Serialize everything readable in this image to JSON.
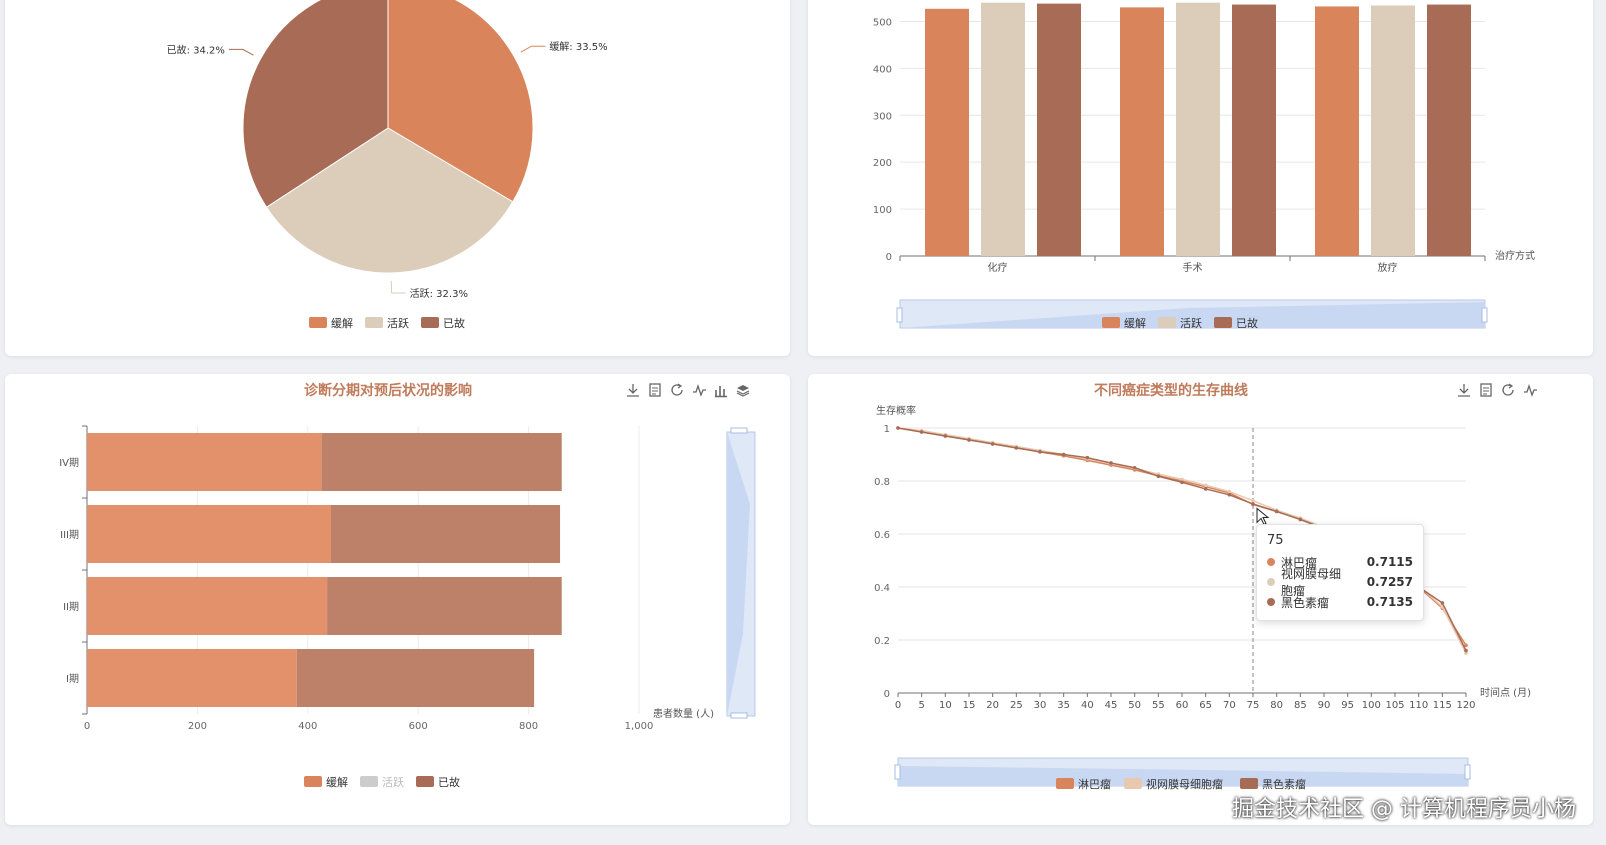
{
  "colors": {
    "remission": "#d9845a",
    "active": "#dccdbb",
    "deceased": "#a86b55",
    "stack_remission": "#e3916a",
    "stack_deceased": "#bd8068",
    "title": "#c07b5b",
    "zoom": "#c9d8f2"
  },
  "icons": {
    "toolbox_full": [
      "download-icon",
      "data-view-icon",
      "refresh-icon",
      "line-type-icon",
      "bar-type-icon",
      "stack-icon"
    ],
    "toolbox_short": [
      "download-icon",
      "data-view-icon",
      "refresh-icon",
      "line-type-icon"
    ]
  },
  "chart_data": [
    {
      "type": "pie",
      "slices": [
        {
          "name": "缓解",
          "value": 33.5,
          "label": "缓解: 33.5%"
        },
        {
          "name": "活跃",
          "value": 32.3,
          "label": "活跃: 32.3%"
        },
        {
          "name": "已故",
          "value": 34.2,
          "label": "已故: 34.2%"
        }
      ],
      "legend": [
        "缓解",
        "活跃",
        "已故"
      ],
      "legend_position": "bottom"
    },
    {
      "type": "bar",
      "categories": [
        "化疗",
        "手术",
        "放疗"
      ],
      "series": [
        {
          "name": "缓解",
          "values": [
            527,
            530,
            532
          ]
        },
        {
          "name": "活跃",
          "values": [
            540,
            540,
            534
          ]
        },
        {
          "name": "已故",
          "values": [
            538,
            536,
            536
          ]
        }
      ],
      "xlabel": "治疗方式",
      "yticks": [
        0,
        100,
        200,
        300,
        400,
        500
      ],
      "ylim": [
        0,
        550
      ],
      "legend": [
        "缓解",
        "活跃",
        "已故"
      ],
      "datazoom": true
    },
    {
      "type": "bar",
      "orientation": "horizontal",
      "stacked": true,
      "title": "诊断分期对预后状况的影响",
      "categories": [
        "IV期",
        "III期",
        "II期",
        "I期"
      ],
      "series": [
        {
          "name": "缓解",
          "values": [
            425,
            442,
            435,
            380
          ]
        },
        {
          "name": "已故",
          "values": [
            435,
            415,
            425,
            430
          ]
        }
      ],
      "xlabel": "患者数量 (人)",
      "xticks": [
        "0",
        "200",
        "400",
        "600",
        "800",
        "1,000"
      ],
      "xlim": [
        0,
        1000
      ],
      "legend": [
        "缓解",
        "活跃",
        "已故"
      ],
      "legend_inactive": [
        "活跃"
      ],
      "datazoom": true
    },
    {
      "type": "line",
      "title": "不同癌症类型的生存曲线",
      "ylabel": "生存概率",
      "xlabel": "时间点 (月)",
      "xlim": [
        0,
        120
      ],
      "ylim": [
        0,
        1
      ],
      "xticks": [
        0,
        5,
        10,
        15,
        20,
        25,
        30,
        35,
        40,
        45,
        50,
        55,
        60,
        65,
        70,
        75,
        80,
        85,
        90,
        95,
        100,
        105,
        110,
        115,
        120
      ],
      "yticks": [
        "0",
        "0.2",
        "0.4",
        "0.6",
        "0.8",
        "1"
      ],
      "x": [
        0,
        5,
        10,
        15,
        20,
        25,
        30,
        35,
        40,
        45,
        50,
        55,
        60,
        65,
        70,
        75,
        80,
        85,
        90,
        95,
        100,
        105,
        110,
        115,
        120
      ],
      "series": [
        {
          "name": "淋巴瘤",
          "values": [
            1.0,
            0.985,
            0.97,
            0.955,
            0.94,
            0.925,
            0.91,
            0.895,
            0.878,
            0.86,
            0.842,
            0.82,
            0.8,
            0.778,
            0.755,
            0.7115,
            0.685,
            0.655,
            0.62,
            0.58,
            0.53,
            0.47,
            0.4,
            0.32,
            0.18
          ]
        },
        {
          "name": "视网膜母细胞瘤",
          "values": [
            1.0,
            0.99,
            0.975,
            0.96,
            0.945,
            0.93,
            0.915,
            0.9,
            0.884,
            0.866,
            0.848,
            0.826,
            0.806,
            0.784,
            0.76,
            0.7257,
            0.69,
            0.66,
            0.625,
            0.585,
            0.535,
            0.475,
            0.405,
            0.325,
            0.15
          ]
        },
        {
          "name": "黑色素瘤",
          "values": [
            1.0,
            0.985,
            0.97,
            0.955,
            0.94,
            0.925,
            0.91,
            0.9,
            0.888,
            0.868,
            0.85,
            0.818,
            0.795,
            0.77,
            0.748,
            0.7135,
            0.685,
            0.655,
            0.62,
            0.58,
            0.53,
            0.47,
            0.4,
            0.34,
            0.16
          ]
        }
      ],
      "legend": [
        "淋巴瘤",
        "视网膜母细胞瘤",
        "黑色素瘤"
      ],
      "hover_x": 75,
      "tooltip": {
        "header": "75",
        "rows": [
          {
            "name": "淋巴瘤",
            "value": "0.7115"
          },
          {
            "name": "视网膜母细胞瘤",
            "value": "0.7257"
          },
          {
            "name": "黑色素瘤",
            "value": "0.7135"
          }
        ]
      },
      "datazoom": true
    }
  ],
  "watermark": "掘金技术社区 @ 计算机程序员小杨"
}
